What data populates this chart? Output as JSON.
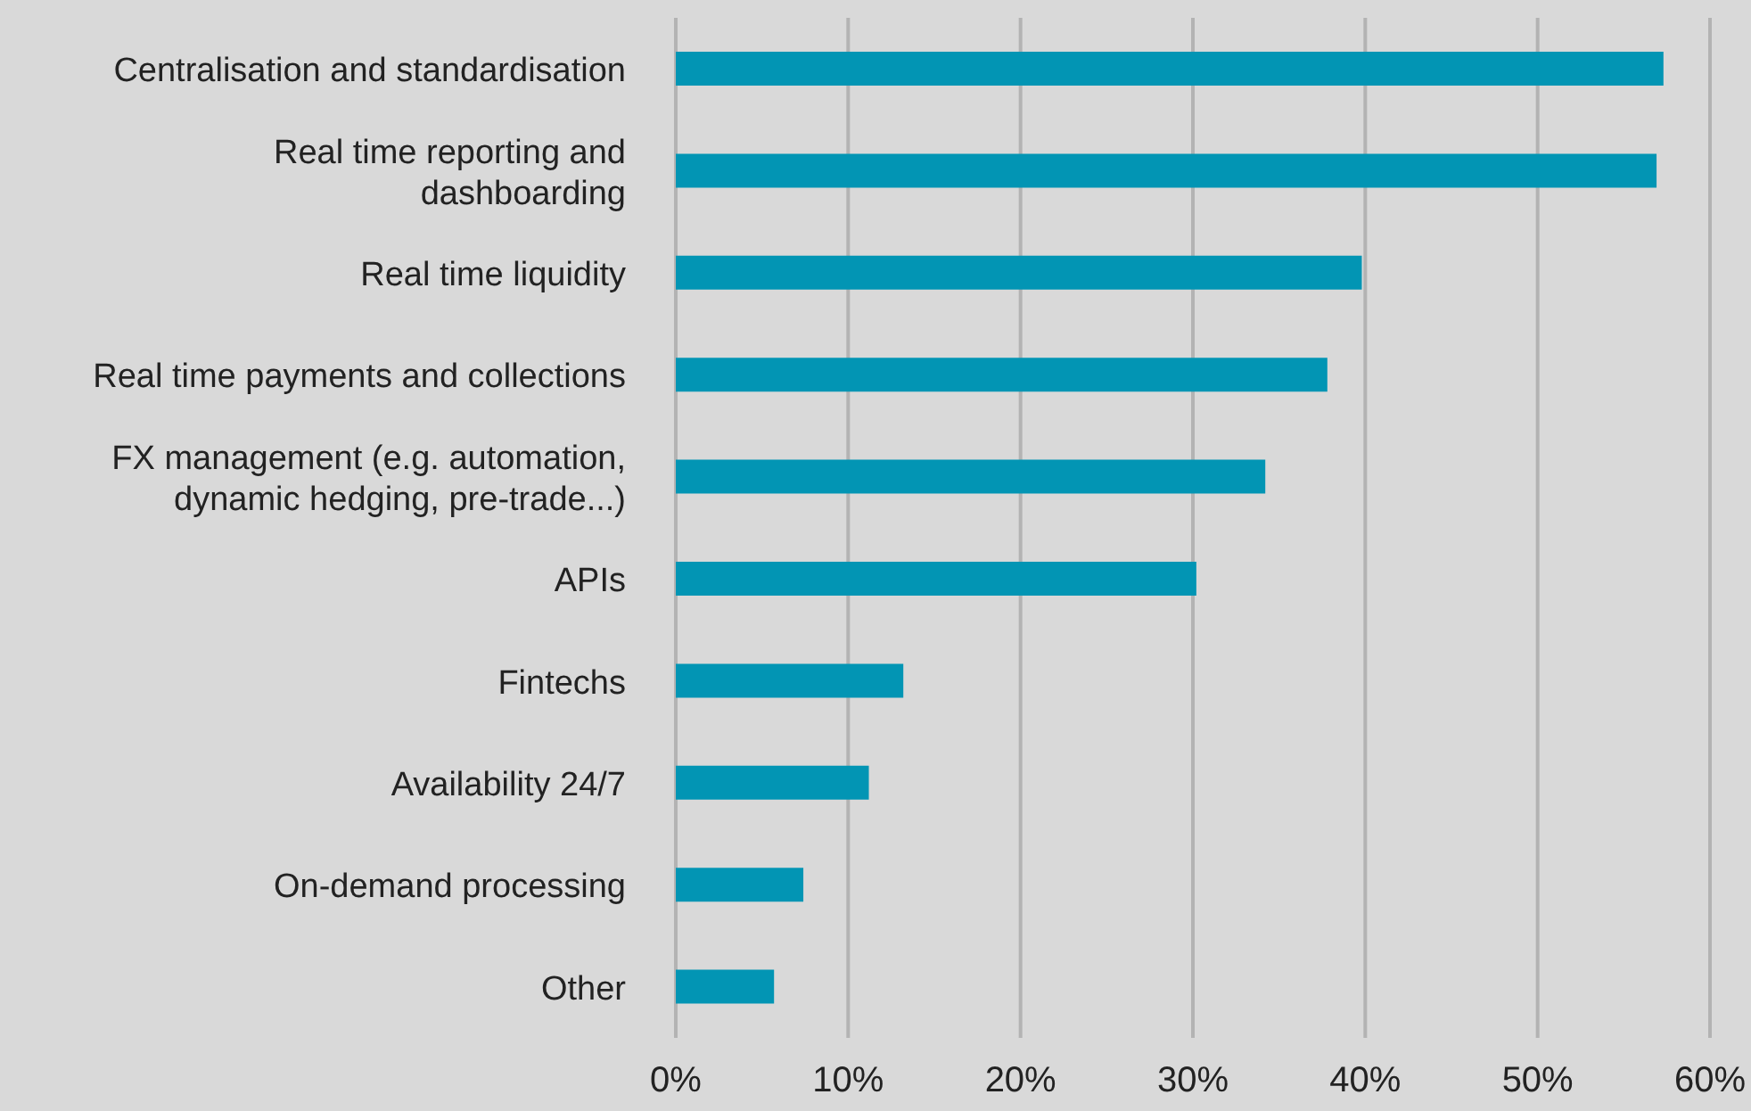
{
  "chart_data": {
    "type": "bar",
    "orientation": "horizontal",
    "categories": [
      "Centralisation and standardisation",
      "Real time reporting and dashboarding",
      "Real time liquidity",
      "Real time payments and collections",
      "FX management (e.g. automation, dynamic hedging, pre-trade...)",
      "APIs",
      "Fintechs",
      "Availability 24/7",
      "On-demand processing",
      "Other"
    ],
    "values": [
      57.3,
      56.9,
      39.8,
      37.8,
      34.2,
      30.2,
      13.2,
      11.2,
      7.4,
      5.7
    ],
    "color": "#0295b4",
    "xlim": [
      0,
      60
    ],
    "xticks": [
      {
        "value": 0,
        "label": "0%"
      },
      {
        "value": 10,
        "label": "10%"
      },
      {
        "value": 20,
        "label": "20%"
      },
      {
        "value": 30,
        "label": "30%"
      },
      {
        "value": 40,
        "label": "40%"
      },
      {
        "value": 50,
        "label": "50%"
      },
      {
        "value": 60,
        "label": "60%"
      }
    ],
    "grid": "x"
  }
}
